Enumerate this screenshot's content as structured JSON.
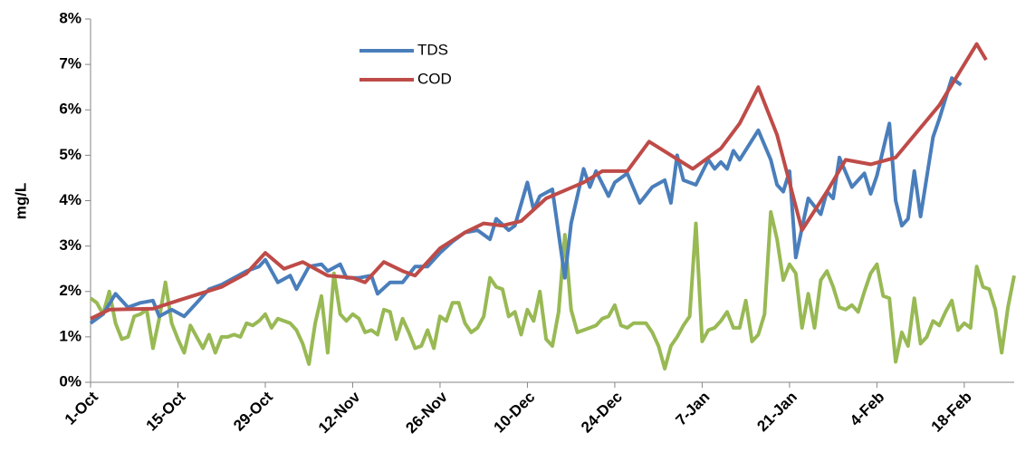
{
  "chart_data": {
    "type": "line",
    "y_label": "mg/L",
    "xlim": [
      0,
      148
    ],
    "ylim": [
      0,
      8
    ],
    "grid": false,
    "xticks": [
      {
        "value": 0,
        "label": "1-Oct"
      },
      {
        "value": 14,
        "label": "15-Oct"
      },
      {
        "value": 28,
        "label": "29-Oct"
      },
      {
        "value": 42,
        "label": "12-Nov"
      },
      {
        "value": 56,
        "label": "26-Nov"
      },
      {
        "value": 70,
        "label": "10-Dec"
      },
      {
        "value": 84,
        "label": "24-Dec"
      },
      {
        "value": 98,
        "label": "7-Jan"
      },
      {
        "value": 112,
        "label": "21-Jan"
      },
      {
        "value": 126,
        "label": "4-Feb"
      },
      {
        "value": 140,
        "label": "18-Feb"
      }
    ],
    "yticks": [
      {
        "value": 0,
        "label": "0%"
      },
      {
        "value": 1,
        "label": "1%"
      },
      {
        "value": 2,
        "label": "2%"
      },
      {
        "value": 3,
        "label": "3%"
      },
      {
        "value": 4,
        "label": "4%"
      },
      {
        "value": 5,
        "label": "5%"
      },
      {
        "value": 6,
        "label": "6%"
      },
      {
        "value": 7,
        "label": "7%"
      },
      {
        "value": 8,
        "label": "8%"
      }
    ],
    "series": [
      {
        "color": "#98b954",
        "x": [
          0,
          1,
          2,
          3,
          4,
          5,
          6,
          7,
          8,
          9,
          10,
          11,
          12,
          13,
          14,
          15,
          16,
          17,
          18,
          19,
          20,
          21,
          22,
          23,
          24,
          25,
          26,
          27,
          28,
          29,
          30,
          31,
          32,
          33,
          34,
          35,
          36,
          37,
          38,
          39,
          40,
          41,
          42,
          43,
          44,
          45,
          46,
          47,
          48,
          49,
          50,
          51,
          52,
          53,
          54,
          55,
          56,
          57,
          58,
          59,
          60,
          61,
          62,
          63,
          64,
          65,
          66,
          67,
          68,
          69,
          70,
          71,
          72,
          73,
          74,
          75,
          76,
          77,
          78,
          79,
          80,
          81,
          82,
          83,
          84,
          85,
          86,
          87,
          88,
          89,
          90,
          91,
          92,
          93,
          94,
          95,
          96,
          97,
          98,
          99,
          100,
          101,
          102,
          103,
          104,
          105,
          106,
          107,
          108,
          109,
          110,
          111,
          112,
          113,
          114,
          115,
          116,
          117,
          118,
          119,
          120,
          121,
          122,
          123,
          124,
          125,
          126,
          127,
          128,
          129,
          130,
          131,
          132,
          133,
          134,
          135,
          136,
          137,
          138,
          139,
          140,
          141,
          142,
          143,
          144,
          145,
          146,
          147,
          148
        ],
        "values": [
          1.85,
          1.75,
          1.5,
          2.0,
          1.3,
          0.95,
          1.0,
          1.45,
          1.5,
          1.6,
          0.75,
          1.4,
          2.2,
          1.3,
          0.95,
          0.65,
          1.25,
          1.0,
          0.75,
          1.05,
          0.65,
          1.0,
          1.0,
          1.05,
          1.0,
          1.3,
          1.25,
          1.35,
          1.5,
          1.2,
          1.4,
          1.35,
          1.3,
          1.15,
          0.85,
          0.4,
          1.3,
          1.9,
          0.65,
          2.4,
          1.5,
          1.35,
          1.5,
          1.4,
          1.1,
          1.15,
          1.05,
          1.6,
          1.55,
          0.95,
          1.4,
          1.1,
          0.75,
          0.8,
          1.15,
          0.75,
          1.45,
          1.35,
          1.75,
          1.75,
          1.3,
          1.1,
          1.2,
          1.45,
          2.3,
          2.1,
          2.05,
          1.45,
          1.55,
          1.05,
          1.6,
          1.35,
          2.0,
          0.95,
          0.8,
          1.55,
          3.25,
          1.6,
          1.1,
          1.15,
          1.2,
          1.25,
          1.4,
          1.45,
          1.7,
          1.25,
          1.2,
          1.3,
          1.3,
          1.3,
          1.1,
          0.8,
          0.3,
          0.8,
          1.0,
          1.25,
          1.45,
          3.5,
          0.9,
          1.15,
          1.2,
          1.35,
          1.55,
          1.2,
          1.2,
          1.8,
          0.9,
          1.05,
          1.5,
          3.75,
          3.15,
          2.25,
          2.6,
          2.4,
          1.2,
          1.95,
          1.2,
          2.25,
          2.45,
          2.1,
          1.65,
          1.6,
          1.7,
          1.55,
          2.0,
          2.4,
          2.6,
          1.9,
          1.85,
          0.45,
          1.1,
          0.8,
          1.85,
          0.85,
          1.0,
          1.35,
          1.25,
          1.55,
          1.8,
          1.15,
          1.3,
          1.2,
          2.55,
          2.1,
          2.05,
          1.6,
          0.65,
          1.65,
          2.35
        ]
      },
      {
        "name": "TDS",
        "color": "#4a7ebb",
        "x": [
          0,
          2,
          4,
          6,
          8,
          10,
          11,
          13,
          15,
          17,
          19,
          21,
          23,
          25,
          27,
          28,
          30,
          32,
          33,
          35,
          37,
          38,
          40,
          41,
          43,
          45,
          46,
          48,
          50,
          52,
          54,
          56,
          58,
          60,
          62,
          64,
          65,
          67,
          68,
          70,
          71,
          72,
          74,
          76,
          77,
          79,
          80,
          81,
          83,
          84,
          86,
          88,
          90,
          92,
          93,
          94,
          95,
          97,
          99,
          100,
          101,
          102,
          103,
          104,
          107,
          109,
          110,
          111,
          112,
          113,
          115,
          117,
          118,
          119,
          120,
          122,
          124,
          125,
          126,
          128,
          129,
          130,
          131,
          132,
          133,
          135,
          136,
          138,
          139.5
        ],
        "values": [
          1.3,
          1.5,
          1.95,
          1.65,
          1.75,
          1.8,
          1.45,
          1.6,
          1.45,
          1.75,
          2.05,
          2.15,
          2.3,
          2.45,
          2.55,
          2.7,
          2.2,
          2.35,
          2.05,
          2.55,
          2.6,
          2.45,
          2.6,
          2.3,
          2.3,
          2.35,
          1.95,
          2.2,
          2.2,
          2.55,
          2.55,
          2.85,
          3.1,
          3.3,
          3.35,
          3.15,
          3.6,
          3.35,
          3.45,
          4.4,
          3.8,
          4.1,
          4.25,
          2.3,
          3.5,
          4.7,
          4.3,
          4.65,
          4.1,
          4.4,
          4.6,
          3.95,
          4.3,
          4.45,
          3.95,
          5.0,
          4.45,
          4.35,
          4.9,
          4.7,
          4.85,
          4.7,
          5.1,
          4.9,
          5.55,
          4.9,
          4.35,
          4.2,
          4.65,
          2.75,
          4.05,
          3.7,
          4.2,
          4.05,
          4.95,
          4.3,
          4.6,
          4.15,
          4.55,
          5.7,
          4.0,
          3.45,
          3.6,
          4.65,
          3.65,
          5.4,
          5.8,
          6.7,
          6.55
        ]
      },
      {
        "name": "COD",
        "color": "#be4b48",
        "x": [
          0,
          3,
          10,
          14,
          21,
          25,
          28,
          31,
          34,
          38,
          42,
          44,
          47,
          50,
          52,
          56,
          60,
          63,
          66,
          69,
          73,
          79,
          82,
          86,
          89.5,
          96.5,
          101,
          104,
          107,
          110,
          114,
          118,
          121,
          125,
          129,
          136,
          142,
          143.5
        ],
        "values": [
          1.4,
          1.6,
          1.62,
          1.8,
          2.1,
          2.4,
          2.85,
          2.5,
          2.65,
          2.35,
          2.3,
          2.2,
          2.65,
          2.45,
          2.35,
          2.95,
          3.3,
          3.5,
          3.45,
          3.55,
          4.05,
          4.4,
          4.65,
          4.65,
          5.3,
          4.7,
          5.15,
          5.7,
          6.5,
          5.45,
          3.35,
          4.2,
          4.9,
          4.8,
          4.95,
          6.1,
          7.45,
          7.1
        ]
      }
    ]
  }
}
